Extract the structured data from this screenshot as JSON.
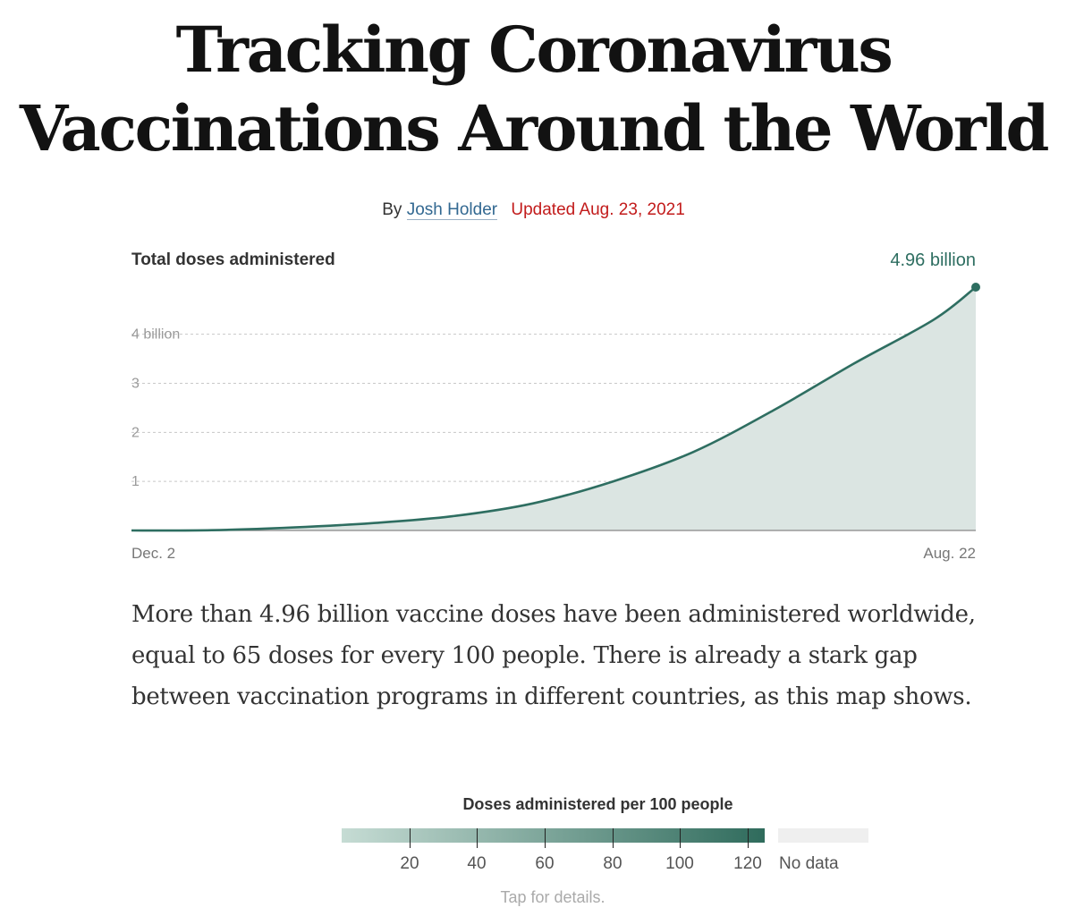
{
  "headline": [
    "Tracking Coronavirus",
    "Vaccinations Around the World"
  ],
  "byline": {
    "by": "By",
    "author": "Josh Holder",
    "updated": "Updated Aug. 23, 2021"
  },
  "chart_data": {
    "type": "area",
    "title": "Total doses administered",
    "total_label": "4.96 billion",
    "x_labels": [
      "Dec. 2",
      "Aug. 22"
    ],
    "x_start": "2020-12-02",
    "x_end": "2021-08-22",
    "y_ticks": [
      {
        "value": 1,
        "label": "1"
      },
      {
        "value": 2,
        "label": "2"
      },
      {
        "value": 3,
        "label": "3"
      },
      {
        "value": 4,
        "label": "4 billion"
      }
    ],
    "ylim": [
      0,
      4.96
    ],
    "grid": true,
    "line_color": "#2e6e61",
    "fill_color": "#dbe5e2",
    "series": [
      {
        "x": [
          "2020-12-02",
          "2020-12-27",
          "2021-01-21",
          "2021-02-15",
          "2021-03-12",
          "2021-04-06",
          "2021-05-01",
          "2021-05-26",
          "2021-06-20",
          "2021-07-15",
          "2021-08-09",
          "2021-08-22"
        ],
        "values": [
          0.0,
          0.005,
          0.06,
          0.15,
          0.29,
          0.55,
          1.0,
          1.6,
          2.45,
          3.4,
          4.3,
          4.96
        ]
      }
    ]
  },
  "paragraph": "More than 4.96 billion vaccine doses have been administered worldwide, equal to 65 doses for every 100 people. There is already a stark gap between vaccination programs in different countries, as this map shows.",
  "legend": {
    "title": "Doses administered per 100 people",
    "ticks": [
      "20",
      "40",
      "60",
      "80",
      "100",
      "120"
    ],
    "no_data": "No data",
    "colors": [
      "#c6dcd4",
      "#2f6b5c"
    ]
  },
  "tap_hint": "Tap for details."
}
